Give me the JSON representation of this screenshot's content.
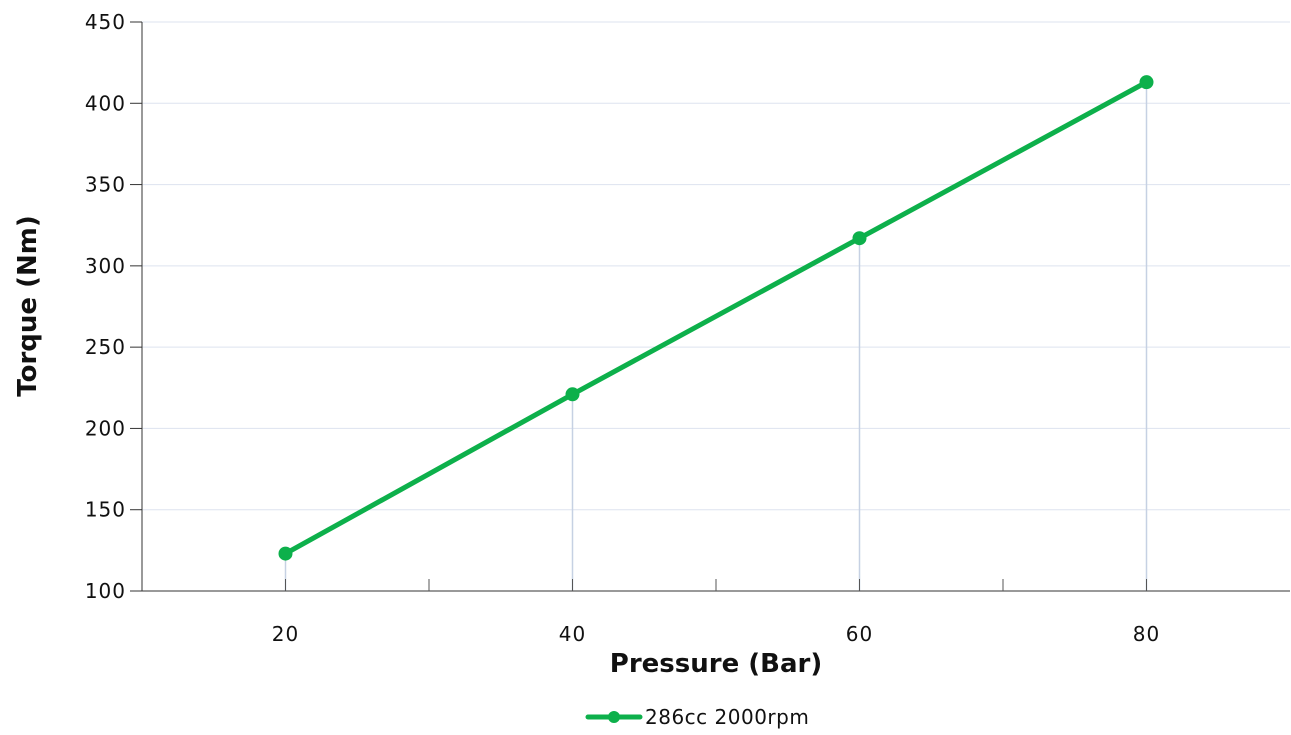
{
  "chart_data": {
    "type": "line",
    "title": "",
    "xlabel": "Pressure (Bar)",
    "ylabel": "Torque (Nm)",
    "xlim": [
      10,
      90
    ],
    "ylim": [
      100,
      450
    ],
    "x_ticks": [
      20,
      40,
      60,
      80
    ],
    "x_minor_ticks": [
      30,
      50,
      70
    ],
    "y_ticks": [
      100,
      150,
      200,
      250,
      300,
      350,
      400,
      450
    ],
    "grid": true,
    "legend_position": "bottom-center",
    "series": [
      {
        "name": "286cc 2000rpm",
        "color": "#0db04b",
        "x": [
          20,
          40,
          60,
          80
        ],
        "y": [
          123,
          221,
          317,
          413
        ]
      }
    ]
  }
}
